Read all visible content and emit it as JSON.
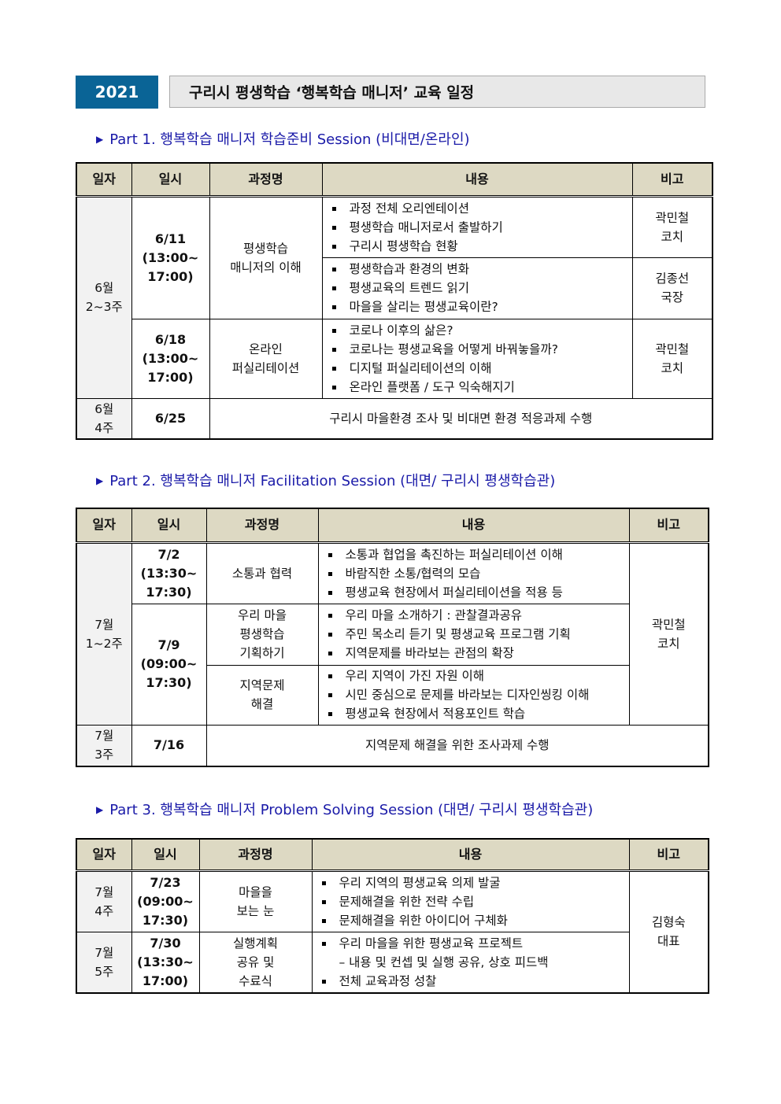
{
  "header": {
    "year": "2021",
    "title": "구리시 평생학습 ‘행복학습 매니저’ 교육 일정"
  },
  "columns": [
    "일자",
    "일시",
    "과정명",
    "내용",
    "비고"
  ],
  "part1": {
    "title": "Part 1. 행복학습 매니저 학습준비 Session (비대면/온라인)",
    "rows": [
      {
        "week": "6월\n2~3주",
        "date": "6/11\n(13:00~\n17:00)",
        "course": "평생학습\n매니저의 이해",
        "blocks": [
          {
            "items": [
              "과정 전체 오리엔테이션",
              "평생학습 매니저로서 출발하기",
              "구리시 평생학습 현황"
            ],
            "note": "곽민철\n코치"
          },
          {
            "items": [
              "평생학습과 환경의 변화",
              "평생교육의 트렌드 읽기",
              "마을을 살리는 평생교육이란?"
            ],
            "note": "김종선\n국장"
          }
        ]
      },
      {
        "date": "6/18\n(13:00~\n17:00)",
        "course": "온라인\n퍼실리테이션",
        "items": [
          "코로나 이후의 삶은?",
          "코로나는 평생교육을 어떻게 바꿔놓을까?",
          "디지털 퍼실리테이션의 이해",
          "온라인 플랫폼 / 도구 익숙해지기"
        ],
        "note": "곽민철\n코치"
      },
      {
        "week": "6월\n4주",
        "date": "6/25",
        "content": "구리시 마을환경 조사 및 비대면 환경 적응과제 수행"
      }
    ]
  },
  "part2": {
    "title": "Part 2. 행복학습 매니저 Facilitation Session (대면/ 구리시 평생학습관)",
    "rows": [
      {
        "week": "7월\n1~2주",
        "date": "7/2\n(13:30~\n17:30)",
        "course": "소통과 협력",
        "items": [
          "소통과 협업을 촉진하는 퍼실리테이션 이해",
          "바람직한 소통/협력의 모습",
          "평생교육 현장에서 퍼실리테이션을 적용 등"
        ],
        "note": "곽민철\n코치"
      },
      {
        "date": "7/9\n(09:00~\n17:30)",
        "course": "우리 마을\n평생학습\n기획하기",
        "items": [
          "우리 마을 소개하기 : 관찰결과공유",
          "주민 목소리 듣기 및 평생교육 프로그램 기획",
          "지역문제를 바라보는 관점의 확장"
        ]
      },
      {
        "course": "지역문제\n해결",
        "items": [
          "우리 지역이 가진 자원 이해",
          "시민 중심으로 문제를 바라보는 디자인씽킹 이해",
          "평생교육 현장에서 적용포인트 학습"
        ]
      },
      {
        "week": "7월\n3주",
        "date": "7/16",
        "content": "지역문제 해결을 위한 조사과제 수행"
      }
    ]
  },
  "part3": {
    "title": "Part 3. 행복학습 매니저 Problem Solving Session (대면/ 구리시 평생학습관)",
    "rows": [
      {
        "week": "7월\n4주",
        "date": "7/23\n(09:00~\n17:30)",
        "course": "마을을\n보는 눈",
        "items": [
          "우리 지역의 평생교육 의제 발굴",
          "문제해결을 위한 전략 수립",
          "문제해결을 위한 아이디어 구체화"
        ],
        "note": "김형숙\n대표"
      },
      {
        "week": "7월\n5주",
        "date": "7/30\n(13:30~\n17:00)",
        "course": "실행계획\n공유 및\n수료식",
        "items": [
          "우리 마을을 위한 평생교육 프로젝트",
          "– 내용 및 컨셉 및 실행 공유, 상호 피드백",
          "전체 교육과정 성찰"
        ]
      }
    ]
  }
}
